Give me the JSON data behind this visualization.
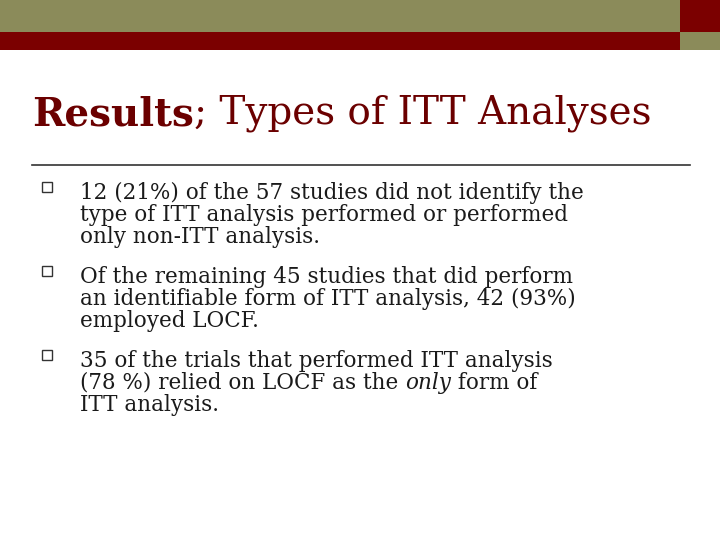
{
  "title_bold": "Results",
  "title_semi": ";",
  "title_regular": " Types of ITT Analyses",
  "title_color": "#6B0000",
  "title_regular_color": "#6B0000",
  "background_color": "#ffffff",
  "header_olive_color": "#8B8B5A",
  "header_red_color": "#7B0000",
  "header_square_color": "#7B0000",
  "line_color": "#333333",
  "bullet_color": "#333333",
  "text_color": "#1a1a1a",
  "font_size_title": 28,
  "font_size_body": 15.5,
  "line1_parts": [
    "12 (21%) of the 57 studies did not identify the",
    "type of ITT analysis performed or performed",
    "only non-ITT analysis."
  ],
  "line2_parts": [
    "Of the remaining 45 studies that did perform",
    "an identifiable form of ITT analysis, 42 (93%)",
    "employed LOCF."
  ],
  "line3_row1": "35 of the trials that performed ITT analysis",
  "line3_row2_pre": "(78 %) relied on LOCF as the ",
  "line3_row2_italic": "only",
  "line3_row2_post": " form of",
  "line3_row3": "ITT analysis."
}
